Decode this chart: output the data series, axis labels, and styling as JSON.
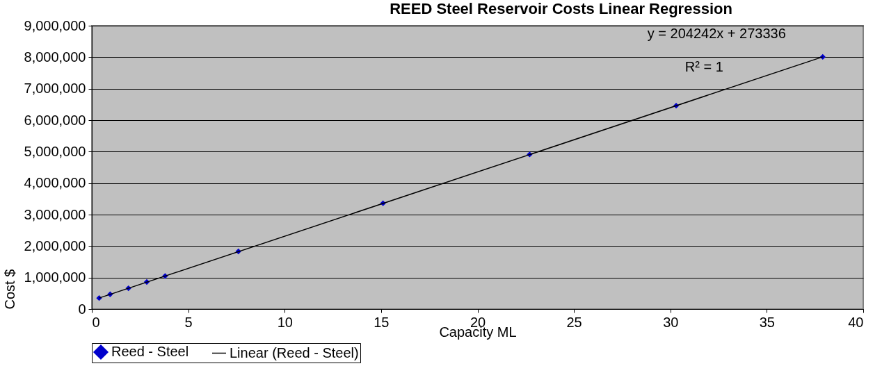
{
  "chart_data": {
    "type": "scatter",
    "title": "REED Steel Reservoir Costs Linear Regression",
    "xlabel": "Capacity ML",
    "ylabel": "Cost $",
    "xlim": [
      0,
      40
    ],
    "xticks": [
      0,
      5,
      10,
      15,
      20,
      25,
      30,
      35,
      40
    ],
    "ylim": [
      0,
      9000000
    ],
    "yticks": [
      0,
      {
        "value": 1000000,
        "label": "1,000,000"
      },
      {
        "value": 2000000,
        "label": "2,000,000"
      },
      {
        "value": 3000000,
        "label": "3,000,000"
      },
      {
        "value": 4000000,
        "label": "4,000,000"
      },
      {
        "value": 5000000,
        "label": "5,000,000"
      },
      {
        "value": 6000000,
        "label": "6,000,000"
      },
      {
        "value": 7000000,
        "label": "7,000,000"
      },
      {
        "value": 8000000,
        "label": "8,000,000"
      },
      {
        "value": 9000000,
        "label": "9,000,000"
      }
    ],
    "grid": "y",
    "legend": "bottom",
    "annotations": [
      "y = 204242x + 273336",
      "R² = 1"
    ],
    "series": [
      {
        "name": "Reed - Steel",
        "color": "#0000cc",
        "marker": "diamond",
        "x": [
          0.38,
          0.95,
          1.9,
          2.85,
          3.8,
          7.6,
          15.1,
          22.7,
          30.3,
          37.9
        ],
        "values": [
          350000,
          470000,
          660000,
          860000,
          1050000,
          1830000,
          3360000,
          4910000,
          6460000,
          8010000
        ]
      },
      {
        "name": "Linear (Reed - Steel)",
        "type": "line",
        "color": "#000000",
        "x": [
          0.38,
          37.9
        ],
        "values": [
          350000,
          8010000
        ]
      }
    ]
  }
}
